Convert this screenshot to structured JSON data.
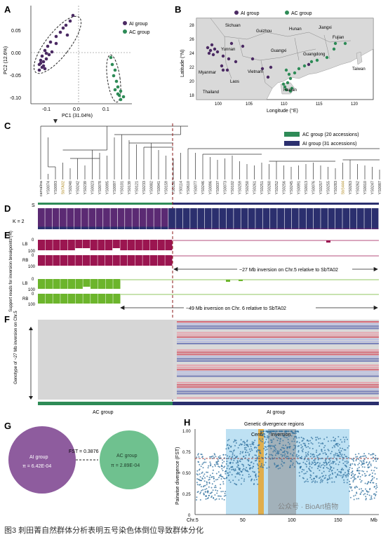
{
  "colors": {
    "ai": "#4b2a63",
    "ac": "#2e8b57",
    "ai_navy": "#2b2f6e",
    "magenta": "#9b1550",
    "lime": "#6cb52c",
    "highlight": "#a8d7ef",
    "scatter": "#2e6f9e"
  },
  "panel_labels": {
    "a": "A",
    "b": "B",
    "c": "C",
    "d": "D",
    "e": "E",
    "f": "F",
    "g": "G",
    "h": "H"
  },
  "panel_a": {
    "xlabel": "PC1 (31.04%)",
    "ylabel": "PC2 (12.6%)",
    "xticks": [
      "-0.1",
      "0.0",
      "0.1"
    ],
    "yticks": [
      "0.05",
      "0.00",
      "-0.05",
      "-0.10"
    ],
    "legend": [
      "AI group",
      "AC group"
    ]
  },
  "panel_b": {
    "legend": [
      "AI group",
      "AC group"
    ],
    "xlabel": "Longitude (°E)",
    "ylabel": "Latitude (°N)",
    "xticks": [
      "100",
      "105",
      "110",
      "115",
      "120"
    ],
    "yticks": [
      "28",
      "26",
      "24",
      "22",
      "20",
      "18"
    ],
    "places": [
      "Sichuan",
      "Guizhou",
      "Hunan",
      "Jiangxi",
      "Fujian",
      "Yunnan",
      "Guangxi",
      "Guangdong",
      "Taiwan",
      "Myanmar",
      "Vietnam",
      "Laos",
      "Thailand",
      "Hainan"
    ]
  },
  "panel_c": {
    "taxa": [
      "carnalina",
      "YS0074",
      "YS0093",
      "SbTA02",
      "YS0240",
      "YS0242",
      "YS0239",
      "YS0023",
      "YS0078",
      "YS0095",
      "YS0097",
      "YS0101",
      "YS0139",
      "YS0121",
      "YS0233",
      "YS0082",
      "YS0041",
      "YS0159",
      "YS0158",
      "YS0114",
      "YS0610",
      "YS0077",
      "YS0246",
      "YS0096",
      "YS0037",
      "YS0073",
      "YS0102",
      "YS0259",
      "YS0250",
      "YS0261",
      "YS0251",
      "YS0260",
      "YS0252",
      "YS0256",
      "YS0245",
      "YS0091",
      "YS0013",
      "YS0076",
      "YS0257",
      "YS0255",
      "YS0283",
      "SbS444",
      "YS0263",
      "YS0262",
      "YS0010",
      "YS0247",
      "YS0087"
    ],
    "legend": [
      "AC group (20 accessions)",
      "AI group (31 accessions)"
    ],
    "s_label": "S"
  },
  "panel_d": {
    "k_label": "K = 2"
  },
  "panel_e": {
    "ylabel": "Support reads for inversion breakpoints (%)",
    "lb": "LB",
    "rb": "RB",
    "tick0": "0",
    "tick100": "100",
    "inv1": "~27 Mb inversion on Chr.5 relative to SbTA02",
    "inv2": "~49 Mb inversion on Chr. 6 relative to SbTA02"
  },
  "panel_f": {
    "ylabel": "Genotype of ~27 Mb inversion on Chr.5",
    "groups": [
      "AC group",
      "AI group"
    ]
  },
  "panel_g": {
    "left_title": "AI group",
    "left_pi": "π = 6.42E-04",
    "fst": "FST = 0.3876",
    "right_title": "AC group",
    "right_pi": "π = 2.89E-04"
  },
  "panel_h": {
    "title": "Genetic divergence regions",
    "cen": "Cen5",
    "inv": "Inversion",
    "ylabel": "Pairwise divergence (FST)",
    "yticks": [
      "1.00",
      "0.75",
      "0.50",
      "0.25",
      "0"
    ],
    "xticks": [
      "Chr.5",
      "50",
      "100",
      "150",
      "Mb"
    ],
    "watermark": "公众号 · BioArt植物"
  },
  "caption": "图3 刺田菁自然群体分析表明五号染色体倒位导致群体分化"
}
